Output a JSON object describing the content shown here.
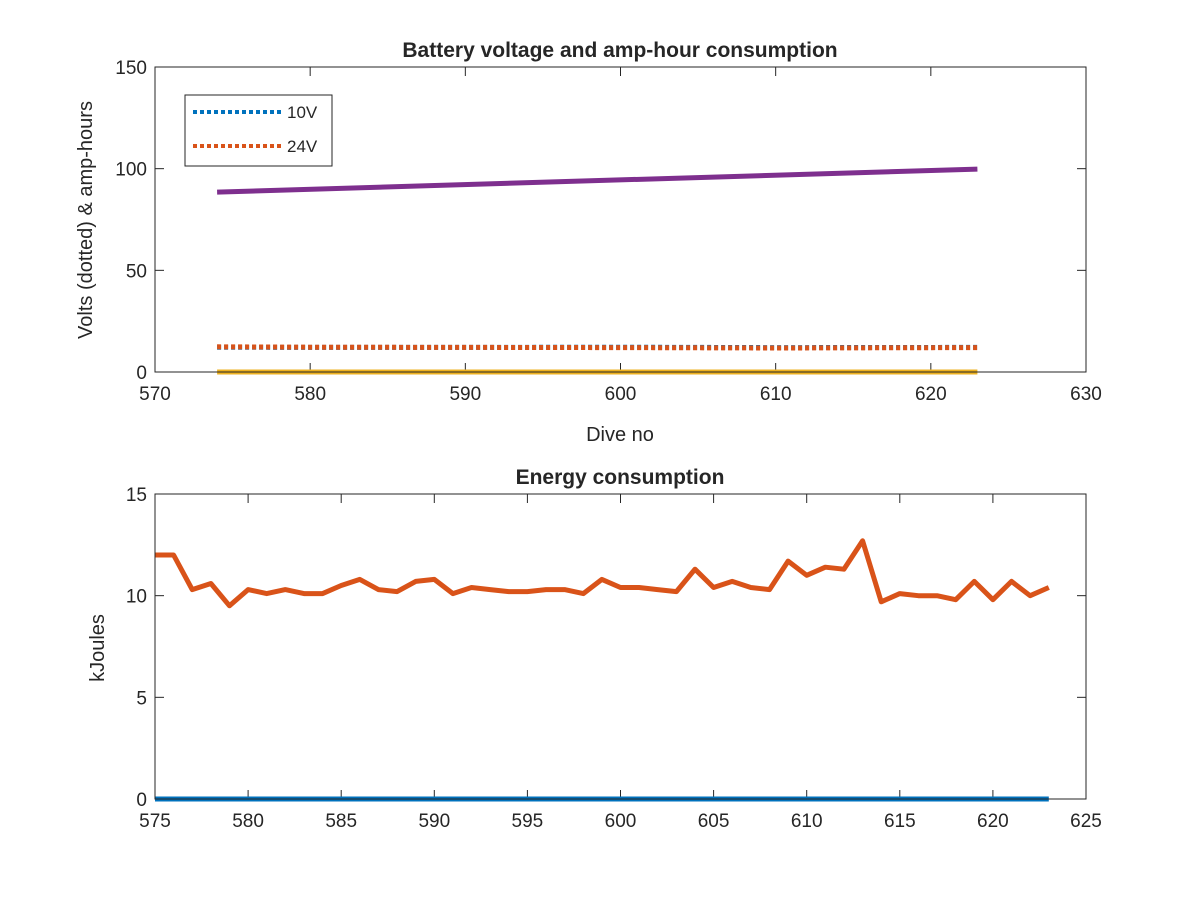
{
  "chart_data": [
    {
      "type": "line",
      "title": "Battery voltage and amp-hour consumption",
      "xlabel": "Dive no",
      "ylabel": "Volts (dotted) & amp-hours",
      "xlim": [
        570,
        630
      ],
      "ylim": [
        0,
        150
      ],
      "xticks": [
        570,
        580,
        590,
        600,
        610,
        620,
        630
      ],
      "yticks": [
        0,
        50,
        100,
        150
      ],
      "grid": false,
      "legend_position": "top-left",
      "series": [
        {
          "name": "10V",
          "style": "dotted",
          "color": "#0072bd",
          "x": [
            574,
            580,
            590,
            600,
            610,
            623
          ],
          "y": [
            12.2,
            12.1,
            12.1,
            12.2,
            12.0,
            12.1
          ]
        },
        {
          "name": "24V",
          "style": "dotted",
          "color": "#d95319",
          "x": [
            574,
            580,
            590,
            600,
            610,
            623
          ],
          "y": [
            12.4,
            12.2,
            12.1,
            12.0,
            11.8,
            12.0
          ]
        },
        {
          "style": "solid",
          "color": "#7e2f8e",
          "x": [
            574,
            623
          ],
          "y": [
            88.5,
            99.8
          ]
        },
        {
          "style": "solid",
          "color": "#edb120",
          "x": [
            574,
            623
          ],
          "y": [
            0,
            0
          ]
        }
      ]
    },
    {
      "type": "line",
      "title": "Energy consumption",
      "xlabel": "",
      "ylabel": "kJoules",
      "xlim": [
        575,
        625
      ],
      "ylim": [
        0,
        15
      ],
      "xticks": [
        575,
        580,
        585,
        590,
        595,
        600,
        605,
        610,
        615,
        620,
        625
      ],
      "yticks": [
        0,
        5,
        10,
        15
      ],
      "grid": false,
      "series": [
        {
          "style": "solid",
          "color": "#d95319",
          "x": [
            575,
            576,
            577,
            578,
            579,
            580,
            581,
            582,
            583,
            584,
            585,
            586,
            587,
            588,
            589,
            590,
            591,
            592,
            593,
            594,
            595,
            596,
            597,
            598,
            599,
            600,
            601,
            602,
            603,
            604,
            605,
            606,
            607,
            608,
            609,
            610,
            611,
            612,
            613,
            614,
            615,
            616,
            617,
            618,
            619,
            620,
            621,
            622,
            623
          ],
          "y": [
            12.0,
            12.0,
            10.3,
            10.6,
            9.5,
            10.3,
            10.1,
            10.3,
            10.1,
            10.1,
            10.5,
            10.8,
            10.3,
            10.2,
            10.7,
            10.8,
            10.1,
            10.4,
            10.3,
            10.2,
            10.2,
            10.3,
            10.3,
            10.1,
            10.8,
            10.4,
            10.4,
            10.3,
            10.2,
            11.3,
            10.4,
            10.7,
            10.4,
            10.3,
            11.7,
            11.0,
            11.4,
            11.3,
            12.7,
            9.7,
            10.1,
            10.0,
            10.0,
            9.8,
            10.7,
            9.8,
            10.7,
            10.0,
            10.4
          ]
        },
        {
          "style": "solid",
          "color": "#0072bd",
          "x": [
            575,
            623
          ],
          "y": [
            0,
            0
          ]
        }
      ]
    }
  ]
}
